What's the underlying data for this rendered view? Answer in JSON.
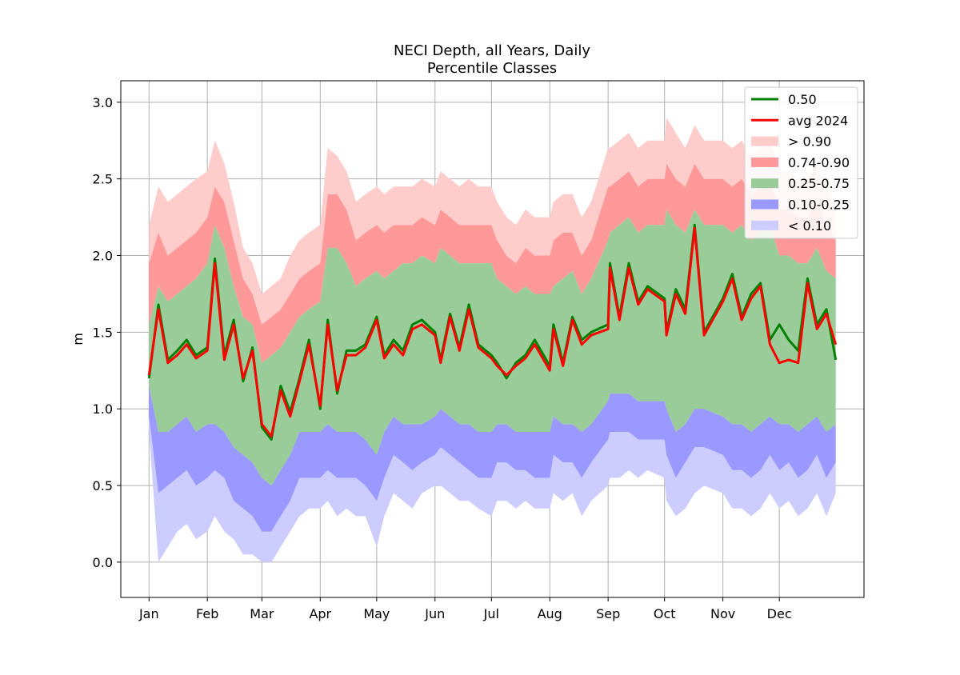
{
  "chart_data": {
    "type": "area",
    "title": "NECI Depth, all Years, Daily",
    "subtitle": "Percentile Classes",
    "xlabel": "",
    "ylabel": "m",
    "xlim": [
      -15,
      380
    ],
    "ylim": [
      -0.23,
      3.14
    ],
    "grid": true,
    "legend_position": "top-right",
    "x_ticks": [
      {
        "day": 0,
        "label": "Jan"
      },
      {
        "day": 31,
        "label": "Feb"
      },
      {
        "day": 60,
        "label": "Mar"
      },
      {
        "day": 91,
        "label": "Apr"
      },
      {
        "day": 121,
        "label": "May"
      },
      {
        "day": 152,
        "label": "Jun"
      },
      {
        "day": 182,
        "label": "Jul"
      },
      {
        "day": 213,
        "label": "Aug"
      },
      {
        "day": 244,
        "label": "Sep"
      },
      {
        "day": 274,
        "label": "Oct"
      },
      {
        "day": 305,
        "label": "Nov"
      },
      {
        "day": 335,
        "label": "Dec"
      }
    ],
    "y_ticks": [
      0.0,
      0.5,
      1.0,
      1.5,
      2.0,
      2.5,
      3.0
    ],
    "y_tick_labels": [
      "0.0",
      "0.5",
      "1.0",
      "1.5",
      "2.0",
      "2.5",
      "3.0"
    ],
    "x": [
      0,
      5,
      10,
      15,
      20,
      25,
      31,
      35,
      40,
      45,
      50,
      55,
      60,
      65,
      70,
      75,
      80,
      85,
      91,
      95,
      100,
      105,
      110,
      115,
      121,
      125,
      130,
      135,
      140,
      145,
      152,
      155,
      160,
      165,
      170,
      175,
      182,
      185,
      190,
      195,
      200,
      205,
      213,
      215,
      220,
      225,
      230,
      235,
      244,
      245,
      250,
      255,
      260,
      265,
      274,
      275,
      280,
      285,
      290,
      295,
      305,
      310,
      315,
      320,
      325,
      330,
      335,
      340,
      345,
      350,
      355,
      360,
      365
    ],
    "series": [
      {
        "name": "< 0.10",
        "color": "#ccccff",
        "lower": [
          0.85,
          0.0,
          0.1,
          0.2,
          0.25,
          0.15,
          0.2,
          0.3,
          0.2,
          0.15,
          0.05,
          0.05,
          0.0,
          0.0,
          0.1,
          0.2,
          0.3,
          0.35,
          0.35,
          0.4,
          0.3,
          0.35,
          0.3,
          0.3,
          0.1,
          0.3,
          0.45,
          0.4,
          0.35,
          0.45,
          0.5,
          0.5,
          0.45,
          0.4,
          0.4,
          0.35,
          0.3,
          0.4,
          0.4,
          0.35,
          0.4,
          0.35,
          0.35,
          0.45,
          0.4,
          0.45,
          0.3,
          0.4,
          0.5,
          0.55,
          0.55,
          0.6,
          0.55,
          0.6,
          0.55,
          0.4,
          0.3,
          0.35,
          0.45,
          0.5,
          0.45,
          0.35,
          0.35,
          0.3,
          0.35,
          0.45,
          0.35,
          0.4,
          0.3,
          0.35,
          0.45,
          0.3,
          0.45
        ],
        "upper": [
          0.95,
          0.45,
          0.5,
          0.55,
          0.6,
          0.5,
          0.55,
          0.6,
          0.55,
          0.4,
          0.35,
          0.3,
          0.2,
          0.2,
          0.3,
          0.4,
          0.55,
          0.55,
          0.55,
          0.6,
          0.55,
          0.55,
          0.55,
          0.5,
          0.4,
          0.55,
          0.7,
          0.65,
          0.6,
          0.65,
          0.7,
          0.75,
          0.7,
          0.65,
          0.6,
          0.55,
          0.55,
          0.65,
          0.65,
          0.6,
          0.6,
          0.55,
          0.55,
          0.7,
          0.65,
          0.65,
          0.55,
          0.65,
          0.8,
          0.85,
          0.85,
          0.85,
          0.8,
          0.8,
          0.8,
          0.7,
          0.55,
          0.65,
          0.75,
          0.75,
          0.7,
          0.6,
          0.6,
          0.55,
          0.6,
          0.7,
          0.6,
          0.65,
          0.55,
          0.6,
          0.7,
          0.55,
          0.65
        ]
      },
      {
        "name": "0.10-0.25",
        "color": "#9999ff",
        "lower": [
          0.95,
          0.45,
          0.5,
          0.55,
          0.6,
          0.5,
          0.55,
          0.6,
          0.55,
          0.4,
          0.35,
          0.3,
          0.2,
          0.2,
          0.3,
          0.4,
          0.55,
          0.55,
          0.55,
          0.6,
          0.55,
          0.55,
          0.55,
          0.5,
          0.4,
          0.55,
          0.7,
          0.65,
          0.6,
          0.65,
          0.7,
          0.75,
          0.7,
          0.65,
          0.6,
          0.55,
          0.55,
          0.65,
          0.65,
          0.6,
          0.6,
          0.55,
          0.55,
          0.7,
          0.65,
          0.65,
          0.55,
          0.65,
          0.8,
          0.85,
          0.85,
          0.85,
          0.8,
          0.8,
          0.8,
          0.7,
          0.55,
          0.65,
          0.75,
          0.75,
          0.7,
          0.6,
          0.6,
          0.55,
          0.6,
          0.7,
          0.6,
          0.65,
          0.55,
          0.6,
          0.7,
          0.55,
          0.65
        ],
        "upper": [
          1.15,
          0.85,
          0.85,
          0.9,
          0.95,
          0.85,
          0.9,
          0.9,
          0.85,
          0.75,
          0.7,
          0.65,
          0.55,
          0.5,
          0.6,
          0.7,
          0.85,
          0.85,
          0.85,
          0.9,
          0.85,
          0.85,
          0.85,
          0.8,
          0.7,
          0.85,
          0.95,
          0.9,
          0.9,
          0.9,
          0.95,
          1.0,
          0.95,
          0.9,
          0.9,
          0.85,
          0.85,
          0.9,
          0.9,
          0.85,
          0.85,
          0.85,
          0.85,
          0.95,
          0.9,
          0.9,
          0.85,
          0.9,
          1.05,
          1.1,
          1.1,
          1.1,
          1.05,
          1.05,
          1.05,
          1.0,
          0.85,
          0.9,
          1.0,
          1.0,
          0.95,
          0.9,
          0.9,
          0.85,
          0.9,
          0.95,
          0.9,
          0.9,
          0.85,
          0.9,
          0.95,
          0.85,
          0.9
        ]
      },
      {
        "name": "0.25-0.75",
        "color": "#99cc99",
        "lower": [
          1.15,
          0.85,
          0.85,
          0.9,
          0.95,
          0.85,
          0.9,
          0.9,
          0.85,
          0.75,
          0.7,
          0.65,
          0.55,
          0.5,
          0.6,
          0.7,
          0.85,
          0.85,
          0.85,
          0.9,
          0.85,
          0.85,
          0.85,
          0.8,
          0.7,
          0.85,
          0.95,
          0.9,
          0.9,
          0.9,
          0.95,
          1.0,
          0.95,
          0.9,
          0.9,
          0.85,
          0.85,
          0.9,
          0.9,
          0.85,
          0.85,
          0.85,
          0.85,
          0.95,
          0.9,
          0.9,
          0.85,
          0.9,
          1.05,
          1.1,
          1.1,
          1.1,
          1.05,
          1.05,
          1.05,
          1.0,
          0.85,
          0.9,
          1.0,
          1.0,
          0.95,
          0.9,
          0.9,
          0.85,
          0.9,
          0.95,
          0.9,
          0.9,
          0.85,
          0.9,
          0.95,
          0.85,
          0.9
        ],
        "upper": [
          1.55,
          1.8,
          1.7,
          1.75,
          1.8,
          1.85,
          1.95,
          2.2,
          2.05,
          1.8,
          1.6,
          1.55,
          1.3,
          1.35,
          1.4,
          1.5,
          1.6,
          1.65,
          1.7,
          2.05,
          2.05,
          1.95,
          1.8,
          1.85,
          1.9,
          1.85,
          1.9,
          1.95,
          1.95,
          2.0,
          1.95,
          2.05,
          2.0,
          1.95,
          1.95,
          1.95,
          1.95,
          1.85,
          1.8,
          1.75,
          1.8,
          1.75,
          1.75,
          1.8,
          1.85,
          1.9,
          1.75,
          1.85,
          2.1,
          2.15,
          2.2,
          2.25,
          2.15,
          2.2,
          2.2,
          2.3,
          2.2,
          2.15,
          2.3,
          2.2,
          2.2,
          2.15,
          2.2,
          2.1,
          2.15,
          2.2,
          2.0,
          2.0,
          1.95,
          1.95,
          2.05,
          1.9,
          1.85
        ]
      },
      {
        "name": "0.74-0.90",
        "color": "#ff9999",
        "lower": [
          1.55,
          1.8,
          1.7,
          1.75,
          1.8,
          1.85,
          1.95,
          2.2,
          2.05,
          1.8,
          1.6,
          1.55,
          1.3,
          1.35,
          1.4,
          1.5,
          1.6,
          1.65,
          1.7,
          2.05,
          2.05,
          1.95,
          1.8,
          1.85,
          1.9,
          1.85,
          1.9,
          1.95,
          1.95,
          2.0,
          1.95,
          2.05,
          2.0,
          1.95,
          1.95,
          1.95,
          1.95,
          1.85,
          1.8,
          1.75,
          1.8,
          1.75,
          1.75,
          1.8,
          1.85,
          1.9,
          1.75,
          1.85,
          2.1,
          2.15,
          2.2,
          2.25,
          2.15,
          2.2,
          2.2,
          2.3,
          2.2,
          2.15,
          2.3,
          2.2,
          2.2,
          2.15,
          2.2,
          2.1,
          2.15,
          2.2,
          2.0,
          2.0,
          1.95,
          1.95,
          2.05,
          1.9,
          1.85
        ],
        "upper": [
          1.95,
          2.15,
          2.0,
          2.05,
          2.1,
          2.15,
          2.25,
          2.45,
          2.35,
          2.1,
          1.85,
          1.75,
          1.55,
          1.6,
          1.65,
          1.75,
          1.85,
          1.9,
          1.95,
          2.4,
          2.4,
          2.3,
          2.1,
          2.15,
          2.2,
          2.15,
          2.2,
          2.2,
          2.2,
          2.25,
          2.2,
          2.3,
          2.25,
          2.2,
          2.2,
          2.2,
          2.2,
          2.1,
          2.0,
          1.95,
          2.05,
          2.0,
          2.0,
          2.1,
          2.15,
          2.15,
          2.0,
          2.1,
          2.45,
          2.45,
          2.5,
          2.55,
          2.45,
          2.5,
          2.5,
          2.6,
          2.5,
          2.45,
          2.6,
          2.5,
          2.5,
          2.45,
          2.5,
          2.4,
          2.45,
          2.5,
          2.3,
          2.3,
          2.25,
          2.25,
          2.35,
          2.2,
          2.1
        ]
      },
      {
        "name": "> 0.90",
        "color": "#ffcccc",
        "lower": [
          1.95,
          2.15,
          2.0,
          2.05,
          2.1,
          2.15,
          2.25,
          2.45,
          2.35,
          2.1,
          1.85,
          1.75,
          1.55,
          1.6,
          1.65,
          1.75,
          1.85,
          1.9,
          1.95,
          2.4,
          2.4,
          2.3,
          2.1,
          2.15,
          2.2,
          2.15,
          2.2,
          2.2,
          2.2,
          2.25,
          2.2,
          2.3,
          2.25,
          2.2,
          2.2,
          2.2,
          2.2,
          2.1,
          2.0,
          1.95,
          2.05,
          2.0,
          2.0,
          2.1,
          2.15,
          2.15,
          2.0,
          2.1,
          2.45,
          2.45,
          2.5,
          2.55,
          2.45,
          2.5,
          2.5,
          2.6,
          2.5,
          2.45,
          2.6,
          2.5,
          2.5,
          2.45,
          2.5,
          2.4,
          2.45,
          2.5,
          2.3,
          2.3,
          2.25,
          2.25,
          2.35,
          2.2,
          2.1
        ],
        "upper": [
          2.2,
          2.45,
          2.35,
          2.4,
          2.45,
          2.5,
          2.55,
          2.75,
          2.6,
          2.35,
          2.05,
          1.95,
          1.75,
          1.8,
          1.85,
          2.0,
          2.1,
          2.15,
          2.2,
          2.7,
          2.65,
          2.55,
          2.35,
          2.4,
          2.45,
          2.4,
          2.45,
          2.45,
          2.45,
          2.5,
          2.45,
          2.55,
          2.5,
          2.45,
          2.5,
          2.45,
          2.45,
          2.35,
          2.25,
          2.2,
          2.3,
          2.25,
          2.25,
          2.35,
          2.4,
          2.4,
          2.25,
          2.35,
          2.7,
          2.7,
          2.75,
          2.8,
          2.7,
          2.75,
          2.75,
          2.9,
          2.8,
          2.7,
          2.85,
          2.75,
          2.75,
          2.7,
          2.75,
          2.65,
          2.7,
          2.75,
          2.55,
          2.55,
          2.5,
          2.5,
          2.6,
          2.45,
          2.3
        ]
      },
      {
        "name": "0.50",
        "color": "#008000",
        "kind": "line",
        "values": [
          1.2,
          1.68,
          1.32,
          1.38,
          1.45,
          1.35,
          1.4,
          1.98,
          1.35,
          1.58,
          1.18,
          1.4,
          0.88,
          0.8,
          1.15,
          0.98,
          1.2,
          1.45,
          1.0,
          1.58,
          1.1,
          1.38,
          1.38,
          1.42,
          1.6,
          1.35,
          1.45,
          1.38,
          1.55,
          1.58,
          1.5,
          1.32,
          1.62,
          1.4,
          1.68,
          1.42,
          1.35,
          1.3,
          1.2,
          1.3,
          1.35,
          1.45,
          1.28,
          1.55,
          1.3,
          1.6,
          1.45,
          1.5,
          1.55,
          1.95,
          1.6,
          1.95,
          1.7,
          1.8,
          1.72,
          1.5,
          1.78,
          1.65,
          2.2,
          1.5,
          1.72,
          1.88,
          1.6,
          1.75,
          1.82,
          1.45,
          1.55,
          1.45,
          1.38,
          1.85,
          1.55,
          1.65,
          1.32
        ]
      },
      {
        "name": "avg 2024",
        "color": "#ff0000",
        "kind": "line",
        "values": [
          1.22,
          1.65,
          1.3,
          1.35,
          1.42,
          1.33,
          1.38,
          1.95,
          1.32,
          1.55,
          1.2,
          1.38,
          0.9,
          0.82,
          1.12,
          0.95,
          1.18,
          1.42,
          1.02,
          1.55,
          1.12,
          1.35,
          1.35,
          1.4,
          1.58,
          1.33,
          1.42,
          1.35,
          1.52,
          1.55,
          1.48,
          1.3,
          1.6,
          1.38,
          1.65,
          1.4,
          1.33,
          1.28,
          1.22,
          1.28,
          1.33,
          1.42,
          1.25,
          1.52,
          1.28,
          1.58,
          1.42,
          1.48,
          1.52,
          1.92,
          1.58,
          1.92,
          1.68,
          1.78,
          1.7,
          1.48,
          1.75,
          1.62,
          2.18,
          1.48,
          1.7,
          1.85,
          1.58,
          1.72,
          1.8,
          1.42,
          1.3,
          1.32,
          1.3,
          1.82,
          1.52,
          1.62,
          1.42
        ]
      }
    ]
  }
}
